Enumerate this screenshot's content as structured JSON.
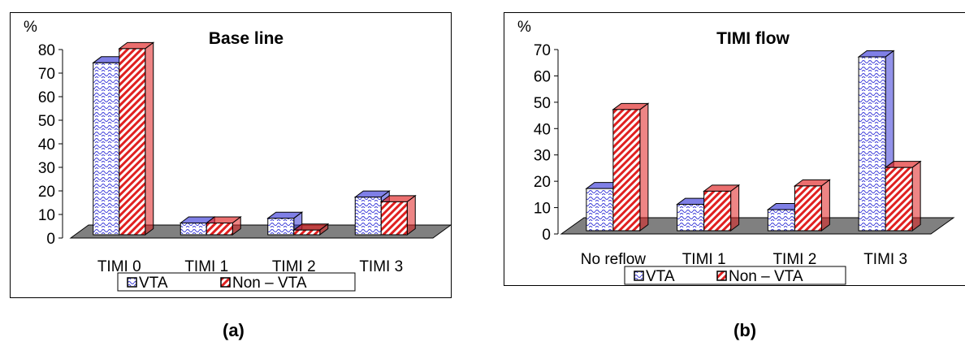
{
  "colors": {
    "vta": "#3a3ad8",
    "non_vta": "#e02020",
    "floor": "#808080"
  },
  "chart_data": [
    {
      "type": "bar",
      "title": "Base line",
      "ylabel": "%",
      "categories": [
        "TIMI 0",
        "TIMI 1",
        "TIMI 2",
        "TIMI 3"
      ],
      "series": [
        {
          "name": "VTA",
          "values": [
            73,
            5,
            7,
            16
          ]
        },
        {
          "name": "Non – VTA",
          "values": [
            79,
            5,
            2,
            14
          ]
        }
      ],
      "ylim": [
        0,
        80
      ],
      "yticks": [
        "0",
        "10",
        "20",
        "30",
        "40",
        "50",
        "60",
        "70",
        "80"
      ],
      "legend": "bottom"
    },
    {
      "type": "bar",
      "title": "TIMI flow",
      "ylabel": "%",
      "categories": [
        "No reflow",
        "TIMI 1",
        "TIMI 2",
        "TIMI 3"
      ],
      "series": [
        {
          "name": "VTA",
          "values": [
            16,
            10,
            8,
            66
          ]
        },
        {
          "name": "Non – VTA",
          "values": [
            46,
            15,
            17,
            24
          ]
        }
      ],
      "ylim": [
        0,
        70
      ],
      "yticks": [
        "0",
        "10",
        "20",
        "30",
        "40",
        "50",
        "60",
        "70"
      ],
      "legend": "bottom"
    }
  ],
  "captions": {
    "a": "(a)",
    "b": "(b)"
  }
}
